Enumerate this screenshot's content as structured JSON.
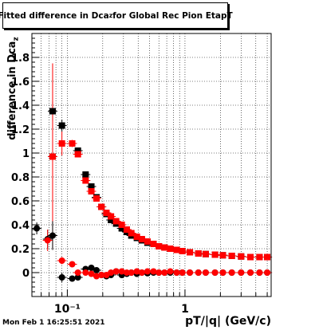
{
  "chart_data": {
    "type": "scatter",
    "title_prefix": "Fitted difference in Dca",
    "title_sub": "z",
    "title_suffix": " for Global Rec Pion EtapT",
    "ylabel_prefix": "difference in Dca",
    "ylabel_sub": "z",
    "xlabel": "pT/|q| (GeV/c)",
    "x_scale": "log",
    "xlim": [
      0.05,
      5.4
    ],
    "ylim": [
      -0.2,
      2.0
    ],
    "x_ticklabels": [
      "10⁻¹",
      "1"
    ],
    "y_ticks": [
      0,
      0.2,
      0.4,
      0.6,
      0.8,
      1,
      1.2,
      1.4,
      1.6,
      1.8
    ],
    "y_ticklabels": [
      "0",
      "0.2",
      "0.4",
      "0.6",
      "0.8",
      "1",
      "1.2",
      "1.4",
      "1.6",
      "1.8"
    ],
    "grid": true,
    "timestamp": "Mon Feb  1 16:25:51 2021",
    "series": [
      {
        "marker": "square",
        "color": "#000000",
        "x": [
          0.075,
          0.09,
          0.123,
          0.143,
          0.16,
          0.177,
          0.195,
          0.215,
          0.235,
          0.26,
          0.29,
          0.32,
          0.35,
          0.39,
          0.43,
          0.48,
          0.54,
          0.6,
          0.67,
          0.75,
          0.85,
          0.95,
          1.1,
          1.3,
          1.5,
          1.8,
          2.1,
          2.5,
          3.0,
          3.6,
          4.3,
          5.0
        ],
        "y": [
          1.35,
          1.23,
          1.02,
          0.82,
          0.72,
          0.63,
          0.55,
          0.49,
          0.44,
          0.41,
          0.37,
          0.34,
          0.31,
          0.29,
          0.27,
          0.25,
          0.24,
          0.22,
          0.21,
          0.2,
          0.19,
          0.18,
          0.17,
          0.16,
          0.155,
          0.15,
          0.145,
          0.14,
          0.135,
          0.13,
          0.13,
          0.13
        ],
        "yerr": [
          0.08,
          0.05,
          0.02,
          0.02,
          0.02,
          0.02,
          0.015,
          0.015,
          0.01,
          0.01,
          0.01,
          0.01,
          0.01,
          0.01,
          0.01,
          0.01,
          0.01,
          0.01,
          0.01,
          0.01,
          0.01,
          0.01,
          0.01,
          0.01,
          0.01,
          0.01,
          0.01,
          0.01,
          0.01,
          0.01,
          0.01,
          0.01
        ]
      },
      {
        "marker": "square",
        "color": "#ff0000",
        "x": [
          0.075,
          0.09,
          0.11,
          0.123,
          0.143,
          0.16,
          0.177,
          0.195,
          0.215,
          0.235,
          0.26,
          0.29,
          0.32,
          0.35,
          0.39,
          0.43,
          0.48,
          0.54,
          0.6,
          0.67,
          0.75,
          0.85,
          0.95,
          1.1,
          1.3,
          1.5,
          1.8,
          2.1,
          2.5,
          3.0,
          3.6,
          4.3,
          5.0
        ],
        "y": [
          0.97,
          1.08,
          1.08,
          0.99,
          0.77,
          0.68,
          0.62,
          0.55,
          0.5,
          0.47,
          0.43,
          0.4,
          0.36,
          0.33,
          0.3,
          0.28,
          0.26,
          0.24,
          0.22,
          0.21,
          0.2,
          0.19,
          0.18,
          0.17,
          0.16,
          0.155,
          0.15,
          0.145,
          0.14,
          0.135,
          0.13,
          0.13,
          0.13
        ],
        "yerr": [
          0.78,
          0.1,
          0.03,
          0.02,
          0.02,
          0.02,
          0.015,
          0.015,
          0.01,
          0.01,
          0.01,
          0.01,
          0.01,
          0.01,
          0.01,
          0.01,
          0.01,
          0.01,
          0.01,
          0.01,
          0.01,
          0.01,
          0.01,
          0.01,
          0.01,
          0.01,
          0.01,
          0.01,
          0.01,
          0.01,
          0.01,
          0.01,
          0.01
        ]
      },
      {
        "marker": "circle",
        "color": "#000000",
        "x": [
          0.055,
          0.068,
          0.075,
          0.09,
          0.11,
          0.123,
          0.143,
          0.16,
          0.177,
          0.195,
          0.215,
          0.235,
          0.26,
          0.29,
          0.32,
          0.35,
          0.39,
          0.43,
          0.48,
          0.54,
          0.6,
          0.67,
          0.75,
          0.85,
          0.95,
          1.1,
          1.3,
          1.5,
          1.8,
          2.1,
          2.5,
          3.0,
          3.6,
          4.3,
          5.0
        ],
        "y": [
          0.37,
          0.28,
          0.31,
          -0.04,
          -0.05,
          -0.04,
          0.03,
          0.04,
          0.02,
          -0.02,
          -0.03,
          -0.02,
          0.01,
          -0.02,
          -0.01,
          0.0,
          -0.01,
          0.0,
          -0.005,
          0.0,
          0.0,
          0.0,
          0.0,
          0.0,
          0.0,
          0.0,
          0.0,
          0.0,
          0.0,
          0.0,
          0.0,
          0.0,
          0.0,
          0.0,
          0.0
        ],
        "yerr": [
          0.05,
          0.08,
          0.12,
          0.04,
          0.02,
          0.02,
          0.01,
          0.01,
          0.01,
          0.01,
          0.01,
          0.01,
          0.01,
          0.01,
          0.01,
          0.01,
          0.01,
          0.01,
          0.01,
          0.01,
          0.01,
          0.01,
          0.01,
          0.01,
          0.01,
          0.01,
          0.01,
          0.01,
          0.01,
          0.01,
          0.01,
          0.01,
          0.01,
          0.01,
          0.01
        ]
      },
      {
        "marker": "circle",
        "color": "#ff0000",
        "x": [
          0.068,
          0.09,
          0.11,
          0.123,
          0.143,
          0.16,
          0.177,
          0.195,
          0.215,
          0.235,
          0.26,
          0.29,
          0.32,
          0.35,
          0.39,
          0.43,
          0.48,
          0.54,
          0.6,
          0.67,
          0.75,
          0.85,
          0.95,
          1.1,
          1.3,
          1.5,
          1.8,
          2.1,
          2.5,
          3.0,
          3.6,
          4.3,
          5.0
        ],
        "y": [
          0.27,
          0.1,
          0.07,
          0.0,
          0.0,
          -0.01,
          -0.03,
          -0.02,
          -0.02,
          0.0,
          0.01,
          0.01,
          0.0,
          0.0,
          0.01,
          0.0,
          0.01,
          0.01,
          0.0,
          0.0,
          0.01,
          0.0,
          0.0,
          0.0,
          0.0,
          0.0,
          0.0,
          0.0,
          0.0,
          0.0,
          0.0,
          0.0,
          0.0
        ],
        "yerr": [
          0.09,
          0.03,
          0.02,
          0.01,
          0.01,
          0.01,
          0.01,
          0.01,
          0.01,
          0.01,
          0.01,
          0.01,
          0.01,
          0.01,
          0.01,
          0.01,
          0.01,
          0.01,
          0.01,
          0.01,
          0.01,
          0.01,
          0.01,
          0.01,
          0.01,
          0.01,
          0.01,
          0.01,
          0.01,
          0.01,
          0.01,
          0.01,
          0.01
        ]
      }
    ]
  }
}
